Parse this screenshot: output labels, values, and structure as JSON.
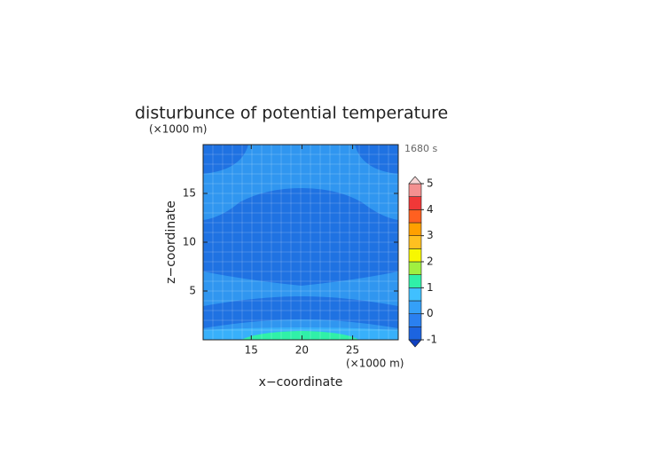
{
  "chart_data": {
    "type": "contour",
    "title": "disturbunce of potential temperature",
    "time_label": "1680 s",
    "x_label": "x−coordinate",
    "x_unit": "(×1000 m)",
    "y_label": "z−coordinate",
    "y_unit": "(×1000 m)",
    "xlim": [
      10.25,
      29.5
    ],
    "xticks": [
      15,
      20,
      25
    ],
    "ylim": [
      0,
      20
    ],
    "yticks": [
      5,
      10,
      15
    ],
    "colorbar": {
      "levels": [
        -1,
        -0.5,
        0,
        0.5,
        1,
        1.5,
        2,
        2.5,
        3,
        3.5,
        4,
        4.5,
        5
      ],
      "colors": [
        "#1c64e0",
        "#2a80f0",
        "#34a0f8",
        "#40c0ff",
        "#30f0a8",
        "#a0f040",
        "#f8f800",
        "#ffc020",
        "#ffa000",
        "#ff6020",
        "#f03838",
        "#f49090"
      ],
      "ticks": [
        -1,
        0,
        1,
        2,
        3,
        4,
        5
      ],
      "under_color": "#1040c0",
      "over_color": "#f8d8d8"
    }
  }
}
